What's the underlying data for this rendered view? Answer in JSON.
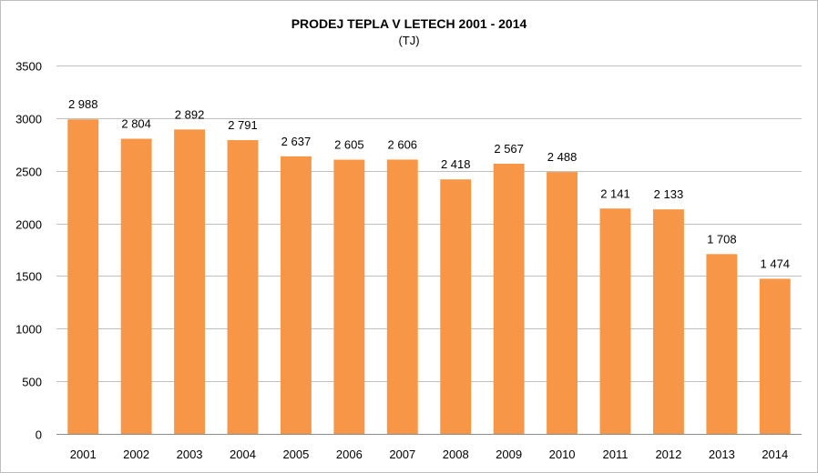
{
  "chart_data": {
    "type": "bar",
    "title": "PRODEJ TEPLA V LETECH 2001 - 2014",
    "subtitle": "(TJ)",
    "categories": [
      "2001",
      "2002",
      "2003",
      "2004",
      "2005",
      "2006",
      "2007",
      "2008",
      "2009",
      "2010",
      "2011",
      "2012",
      "2013",
      "2014"
    ],
    "values": [
      2988,
      2804,
      2892,
      2791,
      2637,
      2605,
      2606,
      2418,
      2567,
      2488,
      2141,
      2133,
      1708,
      1474
    ],
    "data_labels": [
      "2 988",
      "2 804",
      "2 892",
      "2 791",
      "2 637",
      "2 605",
      "2 606",
      "2 418",
      "2 567",
      "2 488",
      "2 141",
      "2 133",
      "1 708",
      "1 474"
    ],
    "y_ticks": [
      "0",
      "500",
      "1000",
      "1500",
      "2000",
      "2500",
      "3000",
      "3500"
    ],
    "ylim": [
      0,
      3500
    ],
    "grid": true,
    "legend": "none",
    "bar_color": "#f79646"
  }
}
